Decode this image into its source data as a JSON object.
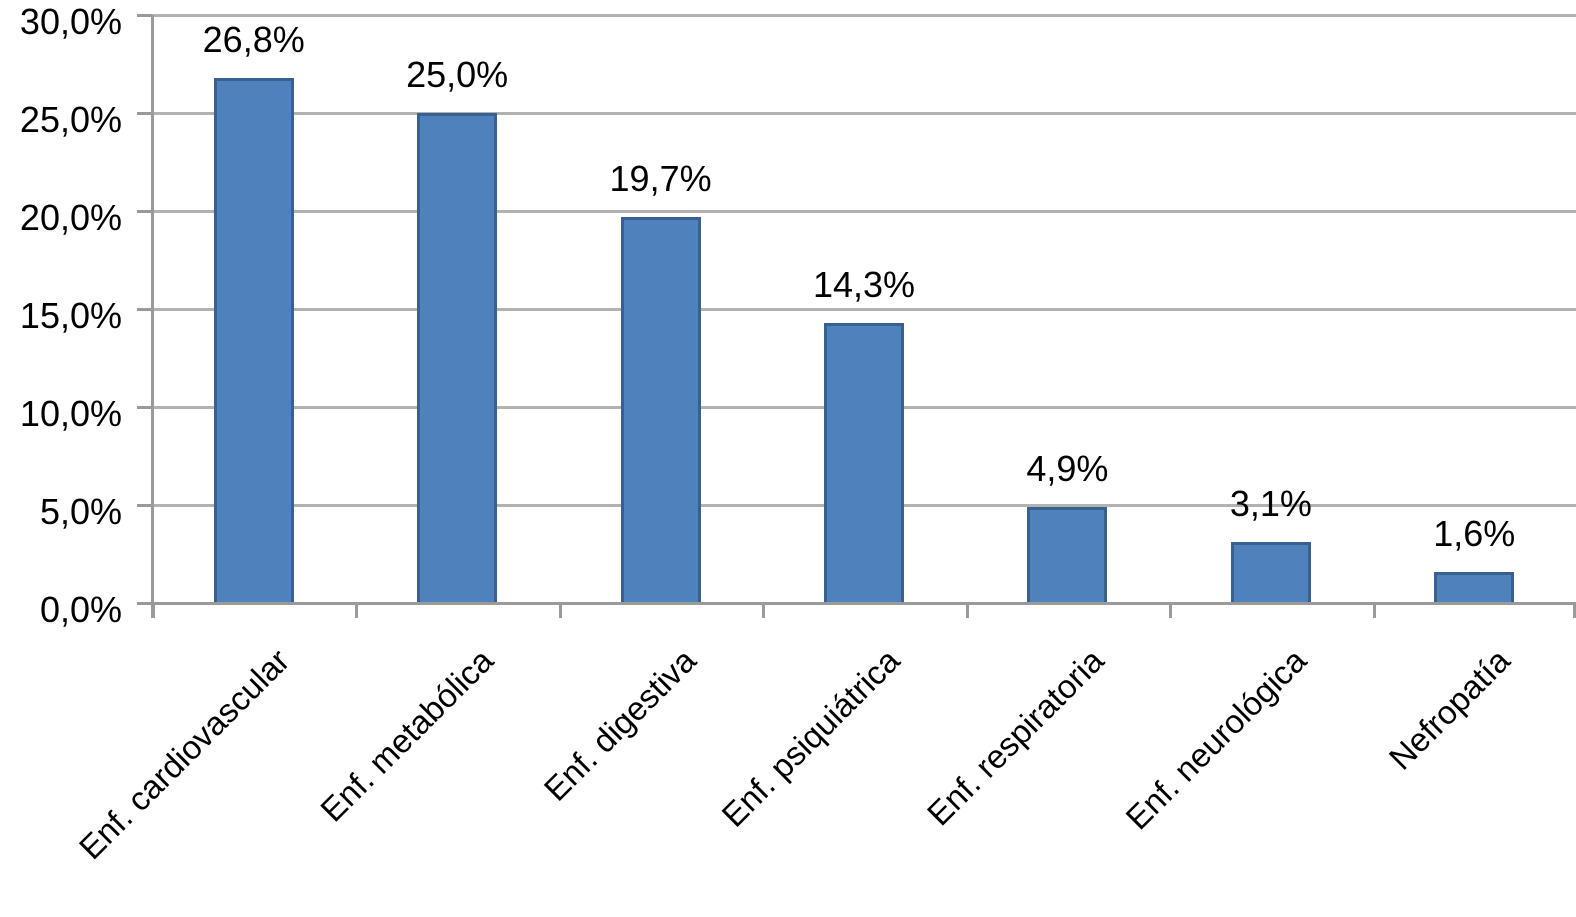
{
  "chart_data": {
    "type": "bar",
    "title": "",
    "xlabel": "",
    "ylabel": "",
    "categories": [
      "Enf. cardiovascular",
      "Enf. metabólica",
      "Enf. digestiva",
      "Enf. psiquiátrica",
      "Enf. respiratoria",
      "Enf. neurológica",
      "Nefropatía"
    ],
    "values": [
      26.8,
      25.0,
      19.7,
      14.3,
      4.9,
      3.1,
      1.6
    ],
    "data_labels": [
      "26,8%",
      "25,0%",
      "19,7%",
      "14,3%",
      "4,9%",
      "3,1%",
      "1,6%"
    ],
    "y_axis": {
      "range": [
        0,
        30
      ],
      "ticks": [
        {
          "value": 30,
          "label": "30,0%"
        },
        {
          "value": 25,
          "label": "25,0%"
        },
        {
          "value": 20,
          "label": "20,0%"
        },
        {
          "value": 15,
          "label": "15,0%"
        },
        {
          "value": 10,
          "label": "10,0%"
        },
        {
          "value": 5,
          "label": "5,0%"
        },
        {
          "value": 0,
          "label": "0,0%"
        }
      ]
    },
    "grid": true,
    "legend": false,
    "colors": {
      "bar_fill": "#4f81bd",
      "bar_border": "#38618f",
      "gridline": "#b2b2b2",
      "axis": "#9a9a9a",
      "text": "#000000"
    }
  }
}
